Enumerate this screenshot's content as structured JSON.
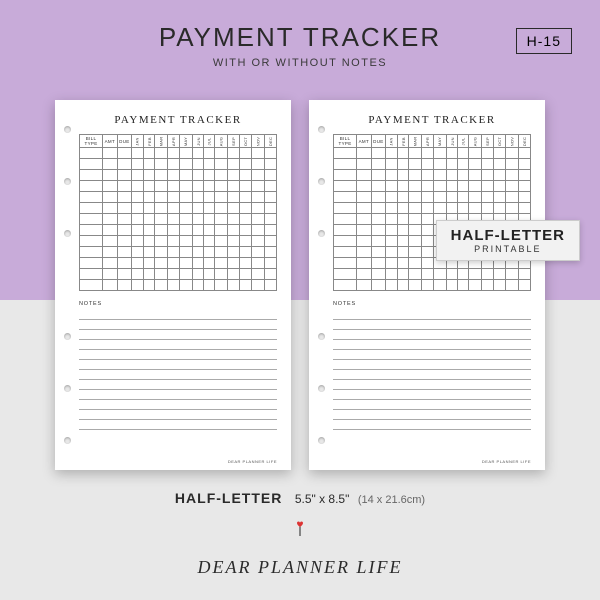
{
  "header": {
    "title": "PAYMENT TRACKER",
    "subtitle": "WITH OR WITHOUT NOTES",
    "code": "H-15"
  },
  "colors": {
    "banner": "#c8abd9",
    "background": "#e8e8e8",
    "page": "#ffffff",
    "text": "#2a2a2a",
    "grid_line": "#888888",
    "note_line": "#aaaaaa"
  },
  "page_template": {
    "title": "PAYMENT TRACKER",
    "columns": {
      "bill": "BILL TYPE",
      "amt": "AMT",
      "due": "DUE",
      "months": [
        "JAN",
        "FEB",
        "MAR",
        "APR",
        "MAY",
        "JUN",
        "JUL",
        "AUG",
        "SEP",
        "OCT",
        "NOV",
        "DEC"
      ]
    },
    "data_rows": 13,
    "notes_label": "NOTES",
    "notes_lines": 12,
    "footer": "DEAR PLANNER LIFE",
    "hole_positions_pct": [
      8,
      22,
      36,
      64,
      78,
      92
    ]
  },
  "overlay_badge": {
    "line1": "HALF-LETTER",
    "line2": "PRINTABLE"
  },
  "size_line": {
    "label": "HALF-LETTER",
    "inches": "5.5\" x 8.5\"",
    "cm": "(14 x 21.6cm)"
  },
  "brand": "DEAR PLANNER LIFE",
  "heart": {
    "fill": "#d33",
    "stem": "#222"
  }
}
